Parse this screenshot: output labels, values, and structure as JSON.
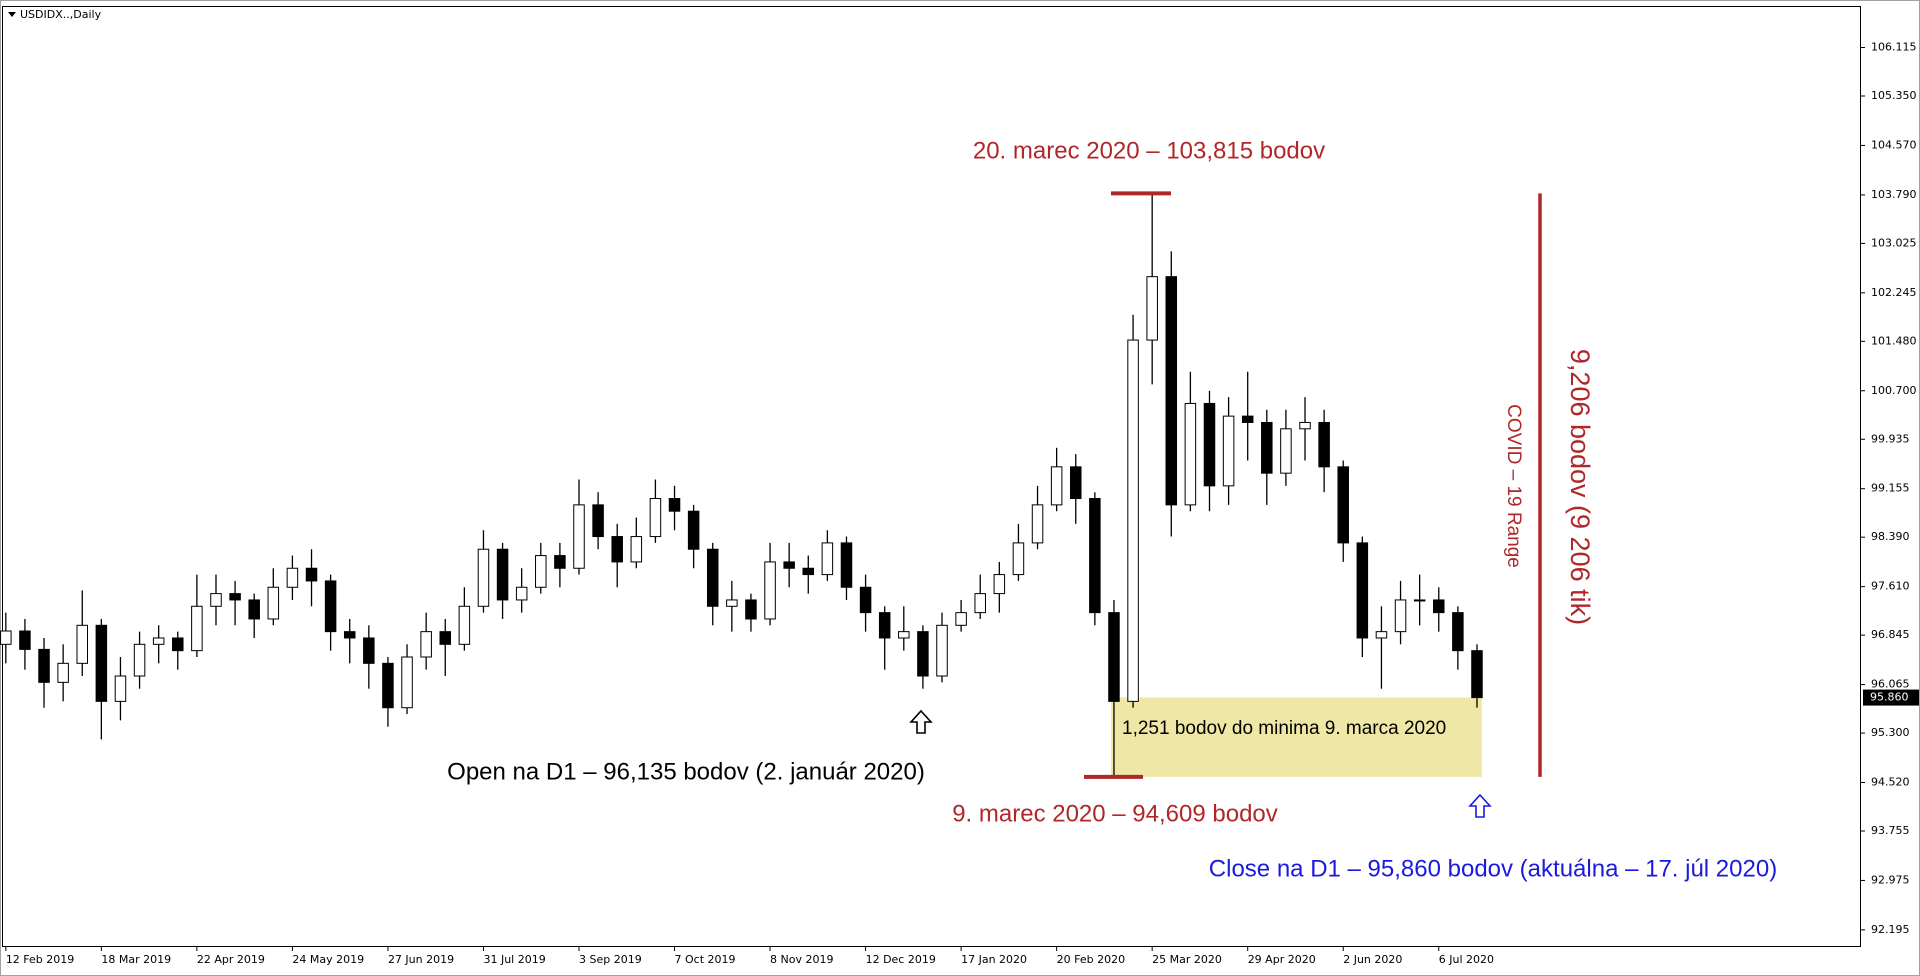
{
  "chart_data": {
    "type": "candlestick",
    "title": "USDIDX..,Daily",
    "series": [
      {
        "color_up": "#ffffff",
        "color_down": "#000000",
        "color_edge": "#000000",
        "open": [
          96.7,
          96.91,
          96.62,
          96.1,
          96.4,
          97.0,
          95.8,
          96.2,
          96.7,
          96.8,
          96.6,
          97.3,
          97.5,
          97.4,
          97.1,
          97.6,
          97.9,
          97.7,
          96.9,
          96.8,
          96.4,
          95.7,
          96.5,
          96.9,
          96.7,
          97.3,
          98.2,
          97.4,
          97.6,
          98.1,
          97.9,
          98.9,
          98.4,
          98.0,
          98.4,
          99.0,
          98.8,
          98.2,
          97.3,
          97.4,
          97.1,
          98.0,
          97.9,
          97.8,
          98.3,
          97.6,
          97.2,
          96.8,
          96.9,
          96.2,
          97.0,
          97.2,
          97.5,
          97.8,
          98.3,
          98.9,
          99.5,
          99.0,
          97.2,
          95.8,
          101.5,
          102.5,
          98.9,
          100.5,
          99.2,
          100.3,
          100.2,
          99.4,
          100.1,
          100.2,
          99.5,
          98.3,
          96.8,
          96.9,
          97.4,
          97.4,
          97.2,
          96.6
        ],
        "high": [
          97.2,
          97.1,
          96.8,
          96.7,
          97.55,
          97.1,
          96.5,
          96.9,
          97.0,
          96.9,
          97.8,
          97.8,
          97.7,
          97.5,
          97.9,
          98.1,
          98.2,
          97.8,
          97.1,
          97.0,
          96.5,
          96.7,
          97.2,
          97.1,
          97.6,
          98.5,
          98.3,
          97.9,
          98.3,
          98.3,
          99.3,
          99.1,
          98.6,
          98.7,
          99.3,
          99.2,
          98.9,
          98.3,
          97.7,
          97.5,
          98.3,
          98.3,
          98.1,
          98.5,
          98.4,
          97.8,
          97.3,
          97.3,
          97.0,
          97.2,
          97.4,
          97.8,
          98.0,
          98.6,
          99.2,
          99.8,
          99.7,
          99.1,
          97.4,
          101.9,
          103.815,
          102.9,
          101.0,
          100.7,
          100.6,
          101.0,
          100.4,
          100.4,
          100.6,
          100.4,
          99.6,
          98.4,
          97.3,
          97.7,
          97.8,
          97.6,
          97.3,
          96.7
        ],
        "low": [
          96.4,
          96.3,
          95.7,
          95.8,
          96.2,
          95.2,
          95.5,
          96.0,
          96.4,
          96.3,
          96.5,
          97.0,
          97.0,
          96.8,
          97.0,
          97.4,
          97.3,
          96.6,
          96.4,
          96.0,
          95.4,
          95.6,
          96.3,
          96.2,
          96.6,
          97.2,
          97.1,
          97.2,
          97.5,
          97.6,
          97.8,
          98.2,
          97.6,
          97.9,
          98.3,
          98.5,
          97.9,
          97.0,
          96.9,
          96.9,
          97.0,
          97.6,
          97.5,
          97.7,
          97.4,
          96.9,
          96.3,
          96.6,
          96.0,
          96.1,
          96.9,
          97.1,
          97.2,
          97.7,
          98.2,
          98.8,
          98.6,
          97.0,
          94.609,
          95.7,
          100.8,
          98.4,
          98.8,
          98.8,
          98.9,
          99.6,
          98.9,
          99.2,
          99.6,
          99.1,
          98.0,
          96.5,
          96.0,
          96.7,
          97.0,
          96.9,
          96.3,
          95.7
        ],
        "close": [
          96.91,
          96.62,
          96.1,
          96.4,
          97.0,
          95.8,
          96.2,
          96.7,
          96.8,
          96.6,
          97.3,
          97.5,
          97.4,
          97.1,
          97.6,
          97.9,
          97.7,
          96.9,
          96.8,
          96.4,
          95.7,
          96.5,
          96.9,
          96.7,
          97.3,
          98.2,
          97.4,
          97.6,
          98.1,
          97.9,
          98.9,
          98.4,
          98.0,
          98.4,
          99.0,
          98.8,
          98.2,
          97.3,
          97.4,
          97.1,
          98.0,
          97.9,
          97.8,
          98.3,
          97.6,
          97.2,
          96.8,
          96.9,
          96.2,
          97.0,
          97.2,
          97.5,
          97.8,
          98.3,
          98.9,
          99.5,
          99.0,
          97.2,
          95.8,
          101.5,
          102.5,
          98.9,
          100.5,
          99.2,
          100.3,
          100.2,
          99.4,
          100.1,
          100.2,
          99.5,
          98.3,
          96.8,
          96.9,
          97.4,
          97.4,
          97.2,
          96.6,
          95.86
        ]
      }
    ],
    "xlim": [
      -0.2,
      97.1
    ],
    "xticks": [
      {
        "value": 0,
        "label": "12 Feb 2019"
      },
      {
        "value": 5,
        "label": "18 Mar 2019"
      },
      {
        "value": 10,
        "label": "22 Apr 2019"
      },
      {
        "value": 15,
        "label": "24 May 2019"
      },
      {
        "value": 20,
        "label": "27 Jun 2019"
      },
      {
        "value": 25,
        "label": "31 Jul 2019"
      },
      {
        "value": 30,
        "label": "3 Sep 2019"
      },
      {
        "value": 35,
        "label": "7 Oct 2019"
      },
      {
        "value": 40,
        "label": "8 Nov 2019"
      },
      {
        "value": 45,
        "label": "12 Dec 2019"
      },
      {
        "value": 50,
        "label": "17 Jan 2020"
      },
      {
        "value": 55,
        "label": "20 Feb 2020"
      },
      {
        "value": 60,
        "label": "25 Mar 2020"
      },
      {
        "value": 65,
        "label": "29 Apr 2020"
      },
      {
        "value": 70,
        "label": "2 Jun 2020"
      },
      {
        "value": 75,
        "label": "6 Jul 2020"
      }
    ],
    "ylim": [
      91.925,
      106.77
    ],
    "yticks": [
      106.115,
      {
        "value": 105.35,
        "label": "105.350"
      },
      {
        "value": 104.57,
        "label": "104.570"
      },
      {
        "value": 103.79,
        "label": "103.790"
      },
      103.025,
      102.245,
      {
        "value": 101.48,
        "label": "101.480"
      },
      {
        "value": 100.7,
        "label": "100.700"
      },
      99.935,
      99.155,
      {
        "value": 98.39,
        "label": "98.390"
      },
      {
        "value": 97.61,
        "label": "97.610"
      },
      96.845,
      96.065,
      {
        "value": 95.3,
        "label": "95.300"
      },
      {
        "value": 94.52,
        "label": "94.520"
      },
      93.755,
      92.975,
      92.195
    ],
    "last_price": {
      "value": 95.86,
      "label": "95.860"
    },
    "range": {
      "high": 103.815,
      "low": 94.609,
      "color": "#b0272a",
      "fill": "#efe7a6"
    },
    "annotations": [
      {
        "text": "20. marec 2020 – 103,815 bodov",
        "color": "#b0272a"
      },
      {
        "text": "9. marec 2020 – 94,609 bodov",
        "color": "#b0272a"
      },
      {
        "text": "Open na D1 – 96,135 bodov (2. január 2020)",
        "color": "#000000"
      },
      {
        "text": "1,251 bodov do minima 9. marca 2020",
        "color": "#000000"
      },
      {
        "text": "Close na D1 – 95,860 bodov (aktuálna – 17. júl 2020)",
        "color": "#1a1adf"
      },
      {
        "text": "COVID – 19 Range",
        "color": "#b0272a"
      },
      {
        "text": "9,206 bodov (9 206 tik)",
        "color": "#b0272a"
      }
    ]
  }
}
